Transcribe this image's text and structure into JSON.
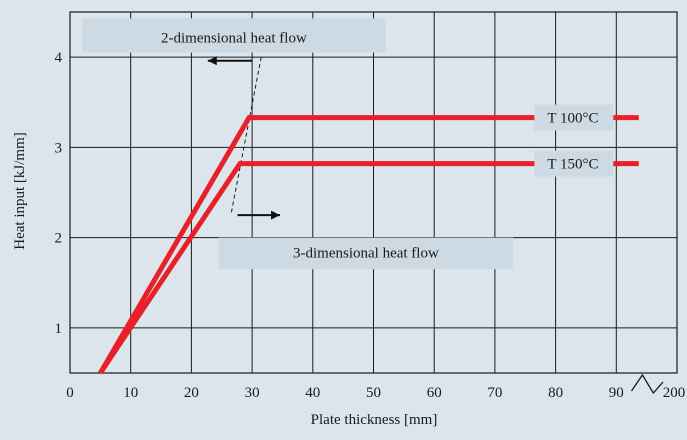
{
  "chart_data": {
    "type": "line",
    "title": "",
    "xlabel": "Plate thickness [mm]",
    "ylabel": "Heat input [kJ/mm]",
    "xlim": [
      0,
      100
    ],
    "ylim": [
      0.5,
      4.5
    ],
    "x_ticks": [
      0,
      10,
      20,
      30,
      40,
      50,
      60,
      70,
      80,
      90
    ],
    "x_tick_labels": [
      "0",
      "10",
      "20",
      "30",
      "40",
      "50",
      "60",
      "70",
      "80",
      "90"
    ],
    "x_axis_break_label": "200",
    "y_ticks": [
      1,
      2,
      3,
      4
    ],
    "y_tick_labels": [
      "1",
      "2",
      "3",
      "4"
    ],
    "grid": true,
    "colors": {
      "series": "#e8202a",
      "background": "#dde5ec",
      "label_box": "#cdd9e3",
      "grid": "#1a1a1a"
    },
    "series": [
      {
        "name": "T  100°C",
        "x": [
          5,
          29.5,
          91
        ],
        "y": [
          0.5,
          3.33,
          3.33
        ]
      },
      {
        "name": "T  150°C",
        "x": [
          5,
          28,
          91
        ],
        "y": [
          0.5,
          2.82,
          2.82
        ]
      }
    ],
    "annotations": {
      "two_dim": "2-dimensional heat flow",
      "three_dim": "3-dimensional heat flow"
    }
  }
}
